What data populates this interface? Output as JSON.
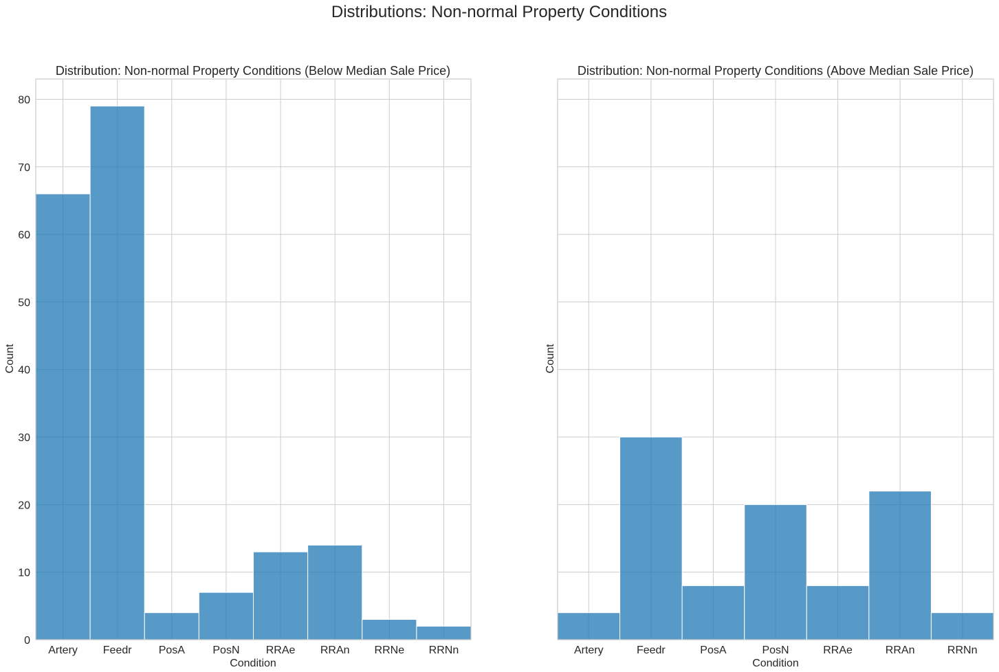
{
  "figure": {
    "suptitle": "Distributions: Non-normal Property Conditions"
  },
  "chart_data": [
    {
      "type": "bar",
      "title": "Distribution: Non-normal Property Conditions (Below Median Sale Price)",
      "xlabel": "Condition",
      "ylabel": "Count",
      "categories": [
        "Artery",
        "Feedr",
        "PosA",
        "PosN",
        "RRAe",
        "RRAn",
        "RRNe",
        "RRNn"
      ],
      "values": [
        66,
        79,
        4,
        7,
        13,
        14,
        3,
        2
      ],
      "ylim": [
        0,
        83
      ],
      "yticks": [
        "0",
        "10",
        "20",
        "30",
        "40",
        "50",
        "60",
        "70",
        "80"
      ],
      "show_yticklabels": true,
      "grid": true,
      "color": "#1f77b4"
    },
    {
      "type": "bar",
      "title": "Distribution: Non-normal Property Conditions (Above Median Sale Price)",
      "xlabel": "Condition",
      "ylabel": "Count",
      "categories": [
        "Artery",
        "Feedr",
        "PosA",
        "PosN",
        "RRAe",
        "RRAn",
        "RRNn"
      ],
      "values": [
        4,
        30,
        8,
        20,
        8,
        22,
        4
      ],
      "ylim": [
        0,
        83
      ],
      "yticks": [
        "0",
        "10",
        "20",
        "30",
        "40",
        "50",
        "60",
        "70",
        "80"
      ],
      "show_yticklabels": false,
      "grid": true,
      "color": "#1f77b4"
    }
  ]
}
